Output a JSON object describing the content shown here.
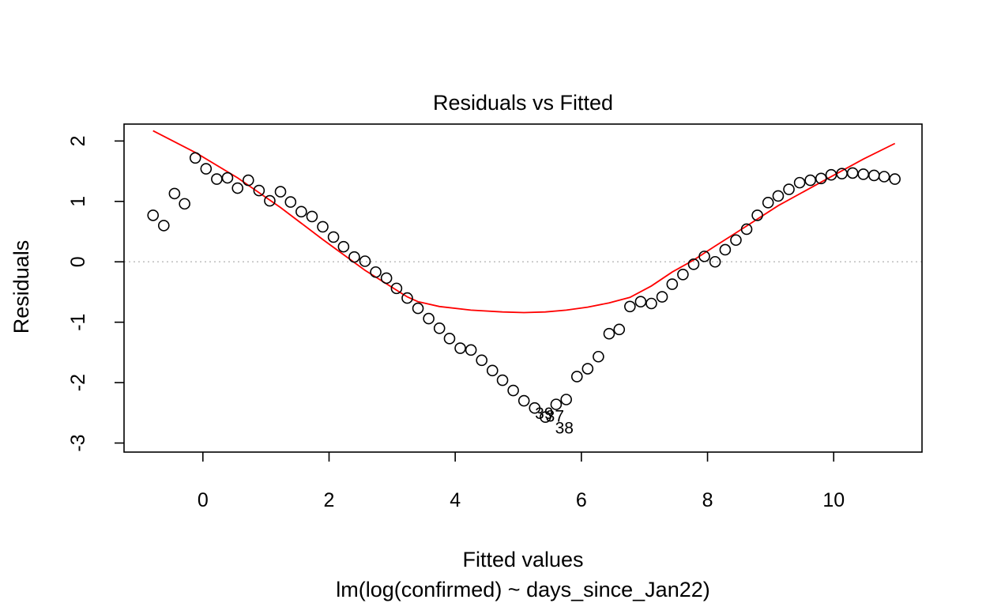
{
  "chart_data": {
    "type": "scatter",
    "title": "Residuals vs Fitted",
    "xlabel": "Fitted values",
    "ylabel": "Residuals",
    "subtitle": "lm(log(confirmed) ~ days_since_Jan22)",
    "xlim": [
      -1.25,
      11.4
    ],
    "ylim": [
      -3.15,
      2.28
    ],
    "x_ticks": [
      0,
      2,
      4,
      6,
      8,
      10
    ],
    "y_ticks": [
      -3,
      -2,
      -1,
      0,
      1,
      2
    ],
    "reference_line": {
      "y": 0,
      "style": "dotted",
      "color": "#bebebe"
    },
    "points": {
      "x": [
        -0.79,
        -0.62,
        -0.45,
        -0.29,
        -0.12,
        0.05,
        0.22,
        0.39,
        0.55,
        0.72,
        0.89,
        1.06,
        1.23,
        1.39,
        1.56,
        1.73,
        1.9,
        2.07,
        2.23,
        2.4,
        2.57,
        2.74,
        2.91,
        3.07,
        3.24,
        3.41,
        3.58,
        3.75,
        3.91,
        4.08,
        4.25,
        4.42,
        4.59,
        4.75,
        4.92,
        5.09,
        5.26,
        5.43,
        5.6,
        5.76,
        5.93,
        6.1,
        6.27,
        6.44,
        6.6,
        6.77,
        6.94,
        7.11,
        7.28,
        7.44,
        7.61,
        7.78,
        7.95,
        8.12,
        8.28,
        8.45,
        8.62,
        8.79,
        8.96,
        9.12,
        9.29,
        9.46,
        9.63,
        9.8,
        9.96,
        10.13,
        10.3,
        10.47,
        10.64,
        10.8,
        10.97
      ],
      "y": [
        0.77,
        0.6,
        1.13,
        0.96,
        1.72,
        1.54,
        1.37,
        1.39,
        1.22,
        1.35,
        1.18,
        1.01,
        1.16,
        0.99,
        0.83,
        0.75,
        0.58,
        0.41,
        0.25,
        0.08,
        0.01,
        -0.17,
        -0.27,
        -0.44,
        -0.6,
        -0.77,
        -0.94,
        -1.1,
        -1.27,
        -1.43,
        -1.46,
        -1.63,
        -1.8,
        -1.96,
        -2.13,
        -2.3,
        -2.42,
        -2.57,
        -2.36,
        -2.28,
        -1.9,
        -1.77,
        -1.57,
        -1.19,
        -1.12,
        -0.74,
        -0.66,
        -0.69,
        -0.58,
        -0.37,
        -0.21,
        -0.04,
        0.09,
        0.0,
        0.2,
        0.36,
        0.54,
        0.77,
        0.98,
        1.09,
        1.2,
        1.31,
        1.35,
        1.38,
        1.44,
        1.46,
        1.47,
        1.45,
        1.43,
        1.41,
        1.37
      ]
    },
    "smoother": {
      "color": "#ff0000",
      "x": [
        -0.79,
        -0.12,
        0.55,
        1.23,
        1.9,
        2.57,
        3.24,
        3.41,
        3.75,
        4.25,
        4.75,
        5.09,
        5.43,
        5.76,
        6.1,
        6.44,
        6.77,
        7.11,
        7.44,
        7.78,
        8.12,
        8.45,
        9.12,
        9.8,
        10.47,
        10.97
      ],
      "y": [
        2.17,
        1.81,
        1.39,
        0.9,
        0.37,
        -0.14,
        -0.58,
        -0.66,
        -0.74,
        -0.8,
        -0.83,
        -0.84,
        -0.83,
        -0.8,
        -0.75,
        -0.68,
        -0.59,
        -0.4,
        -0.17,
        0.03,
        0.26,
        0.48,
        0.93,
        1.32,
        1.7,
        1.96
      ]
    },
    "point_labels": [
      {
        "text": "39",
        "x": 5.26,
        "y": -2.42
      },
      {
        "text": "37",
        "x": 5.43,
        "y": -2.46
      },
      {
        "text": "38",
        "x": 5.58,
        "y": -2.66
      }
    ]
  }
}
